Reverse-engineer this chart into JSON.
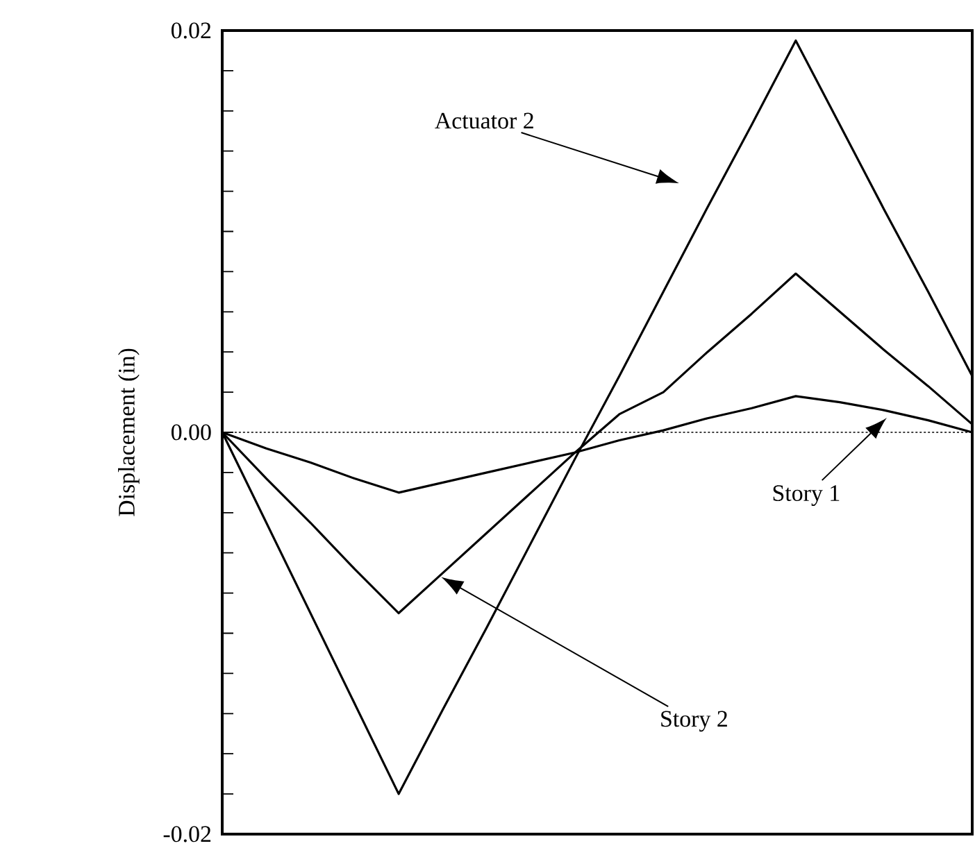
{
  "chart_data": {
    "type": "line",
    "ylabel": "Displacement (in)",
    "categories": [
      null,
      null,
      null,
      null,
      null,
      null,
      null,
      null,
      null,
      null,
      null,
      null,
      null,
      null,
      null,
      null,
      null,
      null
    ],
    "ylim": [
      -0.02,
      0.02
    ],
    "tick_labels": "y",
    "marker": "none",
    "line_style": "solid",
    "yticks": [
      {
        "value": -0.02,
        "label": "-0.02"
      },
      {
        "value": -0.018,
        "label": null
      },
      {
        "value": -0.016,
        "label": null
      },
      {
        "value": -0.014,
        "label": null
      },
      {
        "value": -0.012,
        "label": null
      },
      {
        "value": -0.01,
        "label": null
      },
      {
        "value": -0.008,
        "label": null
      },
      {
        "value": -0.006,
        "label": null
      },
      {
        "value": -0.004,
        "label": null
      },
      {
        "value": -0.002,
        "label": null
      },
      {
        "value": 0,
        "label": "0.00"
      },
      {
        "value": 0.002,
        "label": null
      },
      {
        "value": 0.004,
        "label": null
      },
      {
        "value": 0.006,
        "label": null
      },
      {
        "value": 0.008,
        "label": null
      },
      {
        "value": 0.01,
        "label": null
      },
      {
        "value": 0.012,
        "label": null
      },
      {
        "value": 0.014,
        "label": null
      },
      {
        "value": 0.016,
        "label": null
      },
      {
        "value": 0.018,
        "label": null
      },
      {
        "value": 0.02,
        "label": "0.02"
      }
    ],
    "series": [
      {
        "color": "#000000",
        "values": [
          0,
          -0.0045,
          -0.009,
          -0.0135,
          -0.018,
          -0.0138,
          -0.0097,
          -0.0055,
          -0.0013,
          0.0028,
          0.007,
          0.0112,
          0.0153,
          0.0195,
          0.0153,
          0.0111,
          0.007,
          0.0028
        ]
      },
      {
        "color": "#000000",
        "values": [
          0,
          -0.0023,
          -0.0045,
          -0.0068,
          -0.009,
          -0.007,
          -0.005,
          -0.003,
          -0.001,
          0.0009,
          0.002,
          0.004,
          0.0059,
          0.0079,
          0.006,
          0.0041,
          0.0023,
          0.0004
        ]
      },
      {
        "color": "#000000",
        "values": [
          0,
          -0.0008,
          -0.0015,
          -0.0023,
          -0.003,
          -0.0025,
          -0.002,
          -0.0015,
          -0.001,
          -0.0004,
          0.0001,
          0.0007,
          0.0012,
          0.0018,
          0.0015,
          0.0011,
          0.0006,
          0
        ]
      }
    ],
    "ref_lines": [
      {
        "axis": "y",
        "value": 0,
        "line_style": "dotted",
        "color": "#000000"
      }
    ],
    "annotations": [
      "Actuator 2",
      "Story 2",
      "Story 1"
    ]
  }
}
